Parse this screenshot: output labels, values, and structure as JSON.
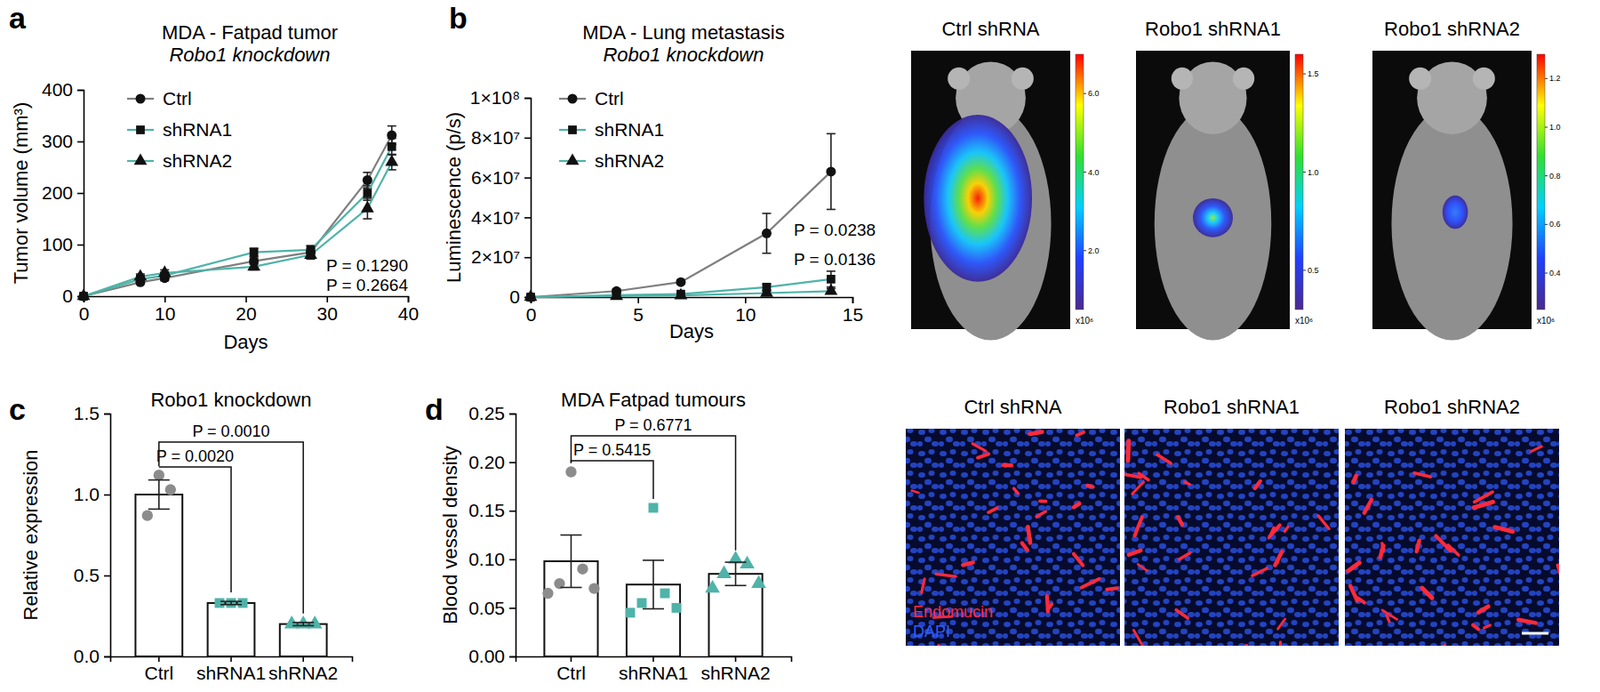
{
  "chart_data": [
    {
      "panel_label": "a",
      "type": "line",
      "title": "MDA - Fatpad tumor",
      "subtitle": "Robo1 knockdown",
      "x_label": "Days",
      "y_label": "Tumor volume (mm³)",
      "x": [
        0,
        7,
        10,
        21,
        28,
        35,
        38
      ],
      "series": [
        {
          "name": "Ctrl",
          "color": "#7f7f7f",
          "marker": "circle",
          "values": [
            0,
            27,
            35,
            68,
            85,
            225,
            312
          ],
          "errors": [
            0,
            4,
            5,
            6,
            7,
            15,
            18
          ]
        },
        {
          "name": "shRNA1",
          "color": "#4fb3a9",
          "marker": "square",
          "values": [
            0,
            33,
            40,
            85,
            90,
            200,
            290
          ],
          "errors": [
            0,
            5,
            5,
            8,
            8,
            14,
            16
          ]
        },
        {
          "name": "shRNA2",
          "color": "#4fb3a9",
          "marker": "triangle",
          "values": [
            0,
            38,
            45,
            57,
            80,
            170,
            260
          ],
          "errors": [
            0,
            5,
            6,
            6,
            8,
            20,
            15
          ]
        }
      ],
      "xlim": [
        0,
        40
      ],
      "ylim": [
        0,
        400
      ],
      "xticks": [
        0,
        10,
        20,
        30,
        40
      ],
      "yticks": [
        0,
        100,
        200,
        300,
        400
      ],
      "annotations": [
        "P = 0.1290",
        "P = 0.2664"
      ]
    },
    {
      "panel_label": "b",
      "type": "line",
      "title": "MDA - Lung metastasis",
      "subtitle": "Robo1 knockdown",
      "x_label": "Days",
      "y_label": "Luminescence (p/s)",
      "x": [
        0,
        4,
        7,
        11,
        14
      ],
      "series": [
        {
          "name": "Ctrl",
          "color": "#7f7f7f",
          "marker": "circle",
          "values": [
            0,
            3000000,
            7500000,
            32000000,
            63000000
          ],
          "errors": [
            0,
            1000000,
            1000000,
            10000000,
            19000000
          ]
        },
        {
          "name": "shRNA1",
          "color": "#4fb3a9",
          "marker": "square",
          "values": [
            0,
            1000000,
            1500000,
            5000000,
            9000000
          ],
          "errors": [
            0,
            500000,
            500000,
            1500000,
            4000000
          ]
        },
        {
          "name": "shRNA2",
          "color": "#4fb3a9",
          "marker": "triangle",
          "values": [
            0,
            500000,
            800000,
            2000000,
            3000000
          ],
          "errors": [
            0,
            300000,
            300000,
            800000,
            1200000
          ]
        }
      ],
      "xlim": [
        0,
        15
      ],
      "ylim": [
        0,
        100000000
      ],
      "xticks": [
        0,
        5,
        10,
        15
      ],
      "yticks": [
        0,
        {
          "value": 20000000,
          "label": "2×10⁷"
        },
        {
          "value": 40000000,
          "label": "4×10⁷"
        },
        {
          "value": 60000000,
          "label": "6×10⁷"
        },
        {
          "value": 80000000,
          "label": "8×10⁷"
        },
        {
          "value": 100000000,
          "label": "1×10⁸"
        }
      ],
      "annotations": [
        "P = 0.0238",
        "P = 0.0136"
      ]
    },
    {
      "panel_label": "c",
      "type": "bar",
      "title": "Robo1 knockdown",
      "y_label": "Relative expression",
      "categories": [
        "Ctrl",
        "shRNA1",
        "shRNA2"
      ],
      "values": [
        1.0,
        0.33,
        0.2
      ],
      "errors": [
        0.09,
        0.01,
        0.01
      ],
      "points": [
        [
          1.12,
          1.03,
          0.87
        ],
        [
          0.33,
          0.33,
          0.33
        ],
        [
          0.2,
          0.2,
          0.2
        ]
      ],
      "colors": [
        "#8c8c8c",
        "#4fb3a9",
        "#4fb3a9"
      ],
      "ylim": [
        0,
        1.5
      ],
      "yticks": [
        {
          "value": 0,
          "label": "0.0"
        },
        0.5,
        {
          "value": 1,
          "label": "1.0"
        },
        1.5
      ],
      "annotations": [
        "P = 0.0020",
        "P = 0.0010"
      ]
    },
    {
      "panel_label": "d",
      "type": "bar",
      "title": "MDA Fatpad tumours",
      "y_label": "Blood vessel density",
      "categories": [
        "Ctrl",
        "shRNA1",
        "shRNA2"
      ],
      "values": [
        0.098,
        0.074,
        0.085
      ],
      "errors": [
        0.027,
        0.025,
        0.012
      ],
      "points": [
        [
          0.19,
          0.09,
          0.075,
          0.07,
          0.065
        ],
        [
          0.153,
          0.065,
          0.055,
          0.05,
          0.045
        ],
        [
          0.1,
          0.095,
          0.085,
          0.075,
          0.07
        ]
      ],
      "colors": [
        "#8c8c8c",
        "#4fb3a9",
        "#4fb3a9"
      ],
      "ylim": [
        0,
        0.25
      ],
      "yticks": [
        {
          "value": 0,
          "label": "0.00"
        },
        0.05,
        {
          "value": 0.1,
          "label": "0.10"
        },
        0.15,
        {
          "value": 0.2,
          "label": "0.20"
        },
        0.25
      ],
      "annotations": [
        "P = 0.5415",
        "P = 0.6771"
      ]
    }
  ],
  "images": [
    {
      "titles": [
        "Ctrl shRNA",
        "Robo1 shRNA1",
        "Robo1 shRNA2"
      ],
      "colorbars": [
        {
          "range": [
            0.5,
            7.0
          ],
          "ticks": [
            {
              "value": 2,
              "label": "2.0"
            },
            {
              "value": 4,
              "label": "4.0"
            },
            {
              "value": 6,
              "label": "6.0"
            }
          ],
          "unit": "x10⁶"
        },
        {
          "range": [
            0.3,
            1.6
          ],
          "ticks": [
            0.5,
            {
              "value": 1,
              "label": "1.0"
            },
            1.5
          ],
          "unit": "x10⁶"
        },
        {
          "range": [
            0.25,
            1.3
          ],
          "ticks": [
            0.4,
            0.6,
            0.8,
            {
              "value": 1,
              "label": "1.0"
            },
            1.2
          ],
          "unit": "x10⁶"
        }
      ]
    },
    {
      "titles": [
        "Ctrl shRNA",
        "Robo1 shRNA1",
        "Robo1 shRNA2"
      ],
      "stains": [
        {
          "name": "Endomucin",
          "color": "#ff2a3c"
        },
        {
          "name": "DAPI",
          "color": "#2f5cff"
        }
      ]
    }
  ]
}
